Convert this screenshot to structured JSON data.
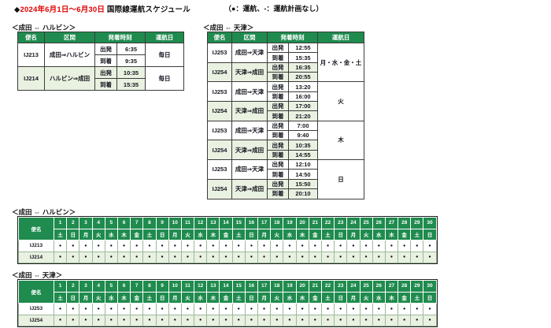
{
  "page": {
    "title_diamond": "◆",
    "title_date": "2024年6月1日～6月30日",
    "title_text": "国際線運航スケジュール",
    "legend": "（●：運航、-：運航計画なし）"
  },
  "colors": {
    "header_green": "#1f8b4e",
    "row_light_green": "#e9f1e1",
    "title_date_red": "#e10000",
    "operation_dot": "#10131f"
  },
  "schedules": [
    {
      "id": "narita-harbin",
      "section_title": "＜成田 ⇔ ハルビン＞",
      "col_headers": {
        "flight": "便名",
        "segment": "区間",
        "times": "発着時刻",
        "days": "運航日"
      },
      "dep_label": "出発",
      "arr_label": "到着",
      "flights": [
        {
          "flight": "IJ213",
          "segment": "成田⇒ハルビン",
          "dep": "6:35",
          "arr": "9:35",
          "days": "毎日",
          "shaded": false
        },
        {
          "flight": "IJ214",
          "segment": "ハルビン⇒成田",
          "dep": "10:35",
          "arr": "15:35",
          "days": "毎日",
          "shaded": true
        }
      ]
    },
    {
      "id": "narita-tianjin",
      "section_title": "＜成田 ⇔ 天津＞",
      "col_headers": {
        "flight": "便名",
        "segment": "区間",
        "times": "発着時刻",
        "days": "運航日"
      },
      "dep_label": "出発",
      "arr_label": "到着",
      "flights": [
        {
          "flight": "IJ253",
          "segment": "成田⇒天津",
          "dep": "12:55",
          "arr": "15:35",
          "days": "月・水・金・土",
          "shaded": false
        },
        {
          "flight": "IJ254",
          "segment": "天津⇒成田",
          "dep": "16:35",
          "arr": "20:55",
          "days": null,
          "shaded": true
        },
        {
          "flight": "IJ253",
          "segment": "成田⇒天津",
          "dep": "13:20",
          "arr": "16:00",
          "days": "火",
          "shaded": false
        },
        {
          "flight": "IJ254",
          "segment": "天津⇒成田",
          "dep": "17:00",
          "arr": "21:20",
          "days": null,
          "shaded": true
        },
        {
          "flight": "IJ253",
          "segment": "成田⇒天津",
          "dep": "7:00",
          "arr": "9:40",
          "days": "木",
          "shaded": false
        },
        {
          "flight": "IJ254",
          "segment": "天津⇒成田",
          "dep": "10:35",
          "arr": "14:55",
          "days": null,
          "shaded": true
        },
        {
          "flight": "IJ253",
          "segment": "成田⇒天津",
          "dep": "12:10",
          "arr": "14:50",
          "days": "日",
          "shaded": false
        },
        {
          "flight": "IJ254",
          "segment": "天津⇒成田",
          "dep": "15:50",
          "arr": "20:10",
          "days": null,
          "shaded": true
        }
      ]
    }
  ],
  "calendars": [
    {
      "id": "narita-harbin",
      "section_title": "＜成田 ⇔ ハルビン＞",
      "flight_header": "便名",
      "day_numbers": [
        "1",
        "2",
        "3",
        "4",
        "5",
        "6",
        "7",
        "8",
        "9",
        "10",
        "11",
        "12",
        "13",
        "14",
        "15",
        "16",
        "17",
        "18",
        "19",
        "20",
        "21",
        "22",
        "23",
        "24",
        "25",
        "26",
        "27",
        "28",
        "29",
        "30"
      ],
      "weekdays": [
        "土",
        "日",
        "月",
        "火",
        "水",
        "木",
        "金",
        "土",
        "日",
        "月",
        "火",
        "水",
        "木",
        "金",
        "土",
        "日",
        "月",
        "火",
        "水",
        "木",
        "金",
        "土",
        "日",
        "月",
        "火",
        "水",
        "木",
        "金",
        "土",
        "日"
      ],
      "rows": [
        {
          "flight": "IJ213",
          "shaded": false,
          "marks": [
            "●",
            "●",
            "●",
            "●",
            "●",
            "●",
            "●",
            "●",
            "●",
            "●",
            "●",
            "●",
            "●",
            "●",
            "●",
            "●",
            "●",
            "●",
            "●",
            "●",
            "●",
            "●",
            "●",
            "●",
            "●",
            "●",
            "●",
            "●",
            "●",
            "●"
          ]
        },
        {
          "flight": "IJ214",
          "shaded": true,
          "marks": [
            "●",
            "●",
            "●",
            "●",
            "●",
            "●",
            "●",
            "●",
            "●",
            "●",
            "●",
            "●",
            "●",
            "●",
            "●",
            "●",
            "●",
            "●",
            "●",
            "●",
            "●",
            "●",
            "●",
            "●",
            "●",
            "●",
            "●",
            "●",
            "●",
            "●"
          ]
        }
      ]
    },
    {
      "id": "narita-tianjin",
      "section_title": "＜成田 ⇔ 天津＞",
      "flight_header": "便名",
      "day_numbers": [
        "1",
        "2",
        "3",
        "4",
        "5",
        "6",
        "7",
        "8",
        "9",
        "10",
        "11",
        "12",
        "13",
        "14",
        "15",
        "16",
        "17",
        "18",
        "19",
        "20",
        "21",
        "22",
        "23",
        "24",
        "25",
        "26",
        "27",
        "28",
        "29",
        "30"
      ],
      "weekdays": [
        "土",
        "日",
        "月",
        "火",
        "水",
        "木",
        "金",
        "土",
        "日",
        "月",
        "火",
        "水",
        "木",
        "金",
        "土",
        "日",
        "月",
        "火",
        "水",
        "木",
        "金",
        "土",
        "日",
        "月",
        "火",
        "水",
        "木",
        "金",
        "土",
        "日"
      ],
      "rows": [
        {
          "flight": "IJ253",
          "shaded": false,
          "marks": [
            "●",
            "●",
            "●",
            "●",
            "●",
            "●",
            "●",
            "●",
            "●",
            "●",
            "●",
            "●",
            "●",
            "●",
            "●",
            "●",
            "●",
            "●",
            "●",
            "●",
            "●",
            "●",
            "●",
            "●",
            "●",
            "●",
            "●",
            "●",
            "●",
            "●"
          ]
        },
        {
          "flight": "IJ254",
          "shaded": true,
          "marks": [
            "●",
            "●",
            "●",
            "●",
            "●",
            "●",
            "●",
            "●",
            "●",
            "●",
            "●",
            "●",
            "●",
            "●",
            "●",
            "●",
            "●",
            "●",
            "●",
            "●",
            "●",
            "●",
            "●",
            "●",
            "●",
            "●",
            "●",
            "●",
            "●",
            "●"
          ]
        }
      ]
    }
  ]
}
